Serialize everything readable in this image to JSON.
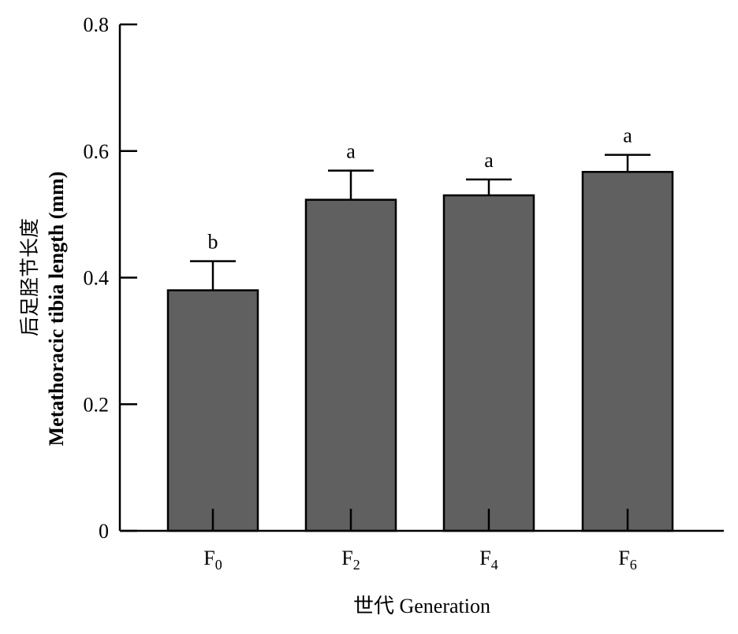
{
  "chart_data": {
    "type": "bar",
    "categories": [
      {
        "base": "F",
        "sub": "0"
      },
      {
        "base": "F",
        "sub": "2"
      },
      {
        "base": "F",
        "sub": "4"
      },
      {
        "base": "F",
        "sub": "6"
      }
    ],
    "values": [
      0.38,
      0.523,
      0.53,
      0.567
    ],
    "errors": [
      0.046,
      0.046,
      0.025,
      0.027
    ],
    "significance": [
      "b",
      "a",
      "a",
      "a"
    ],
    "ylim": [
      0,
      0.8
    ],
    "yticks": [
      0,
      0.2,
      0.4,
      0.6,
      0.8
    ],
    "ytick_labels": [
      "0",
      "0.2",
      "0.4",
      "0.6",
      "0.8"
    ],
    "ylabel_cn": "后足胫节长度",
    "ylabel_en": "Metathoracic tibia length (mm)",
    "xlabel": "世代 Generation",
    "bar_color": "#606060",
    "grid": false
  }
}
